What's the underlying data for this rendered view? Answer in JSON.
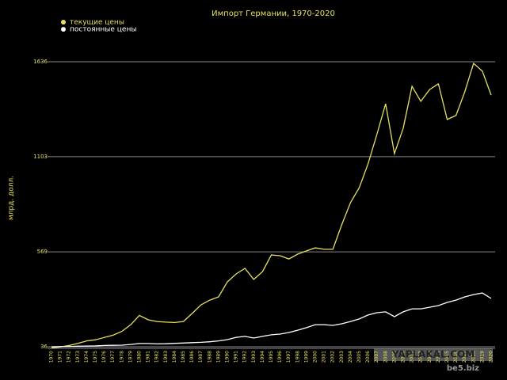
{
  "chart_data": {
    "type": "line",
    "title": "Импорт Германии, 1970-2020",
    "y_label": "млрд. долл.",
    "categories": [
      "1970",
      "1971",
      "1972",
      "1973",
      "1974",
      "1975",
      "1976",
      "1977",
      "1978",
      "1979",
      "1980",
      "1981",
      "1982",
      "1983",
      "1984",
      "1985",
      "1986",
      "1987",
      "1988",
      "1989",
      "1990",
      "1991",
      "1992",
      "1993",
      "1994",
      "1995",
      "1996",
      "1997",
      "1998",
      "1999",
      "2000",
      "2001",
      "2002",
      "2003",
      "2004",
      "2005",
      "2006",
      "2007",
      "2008",
      "2009",
      "2010",
      "2011",
      "2012",
      "2013",
      "2014",
      "2015",
      "2016",
      "2017",
      "2018",
      "2019",
      "2020"
    ],
    "series": [
      {
        "name": "текущие цены",
        "color": "#e8e060",
        "values": [
          30,
          35,
          43,
          55,
          69,
          75,
          88,
          101,
          122,
          159,
          212,
          187,
          178,
          174,
          172,
          178,
          223,
          271,
          298,
          316,
          400,
          445,
          476,
          414,
          458,
          551,
          547,
          529,
          556,
          574,
          591,
          583,
          583,
          720,
          845,
          929,
          1063,
          1227,
          1400,
          1120,
          1263,
          1498,
          1414,
          1480,
          1512,
          1312,
          1334,
          1467,
          1627,
          1583,
          1449
        ]
      },
      {
        "name": "постоянные цены",
        "color": "#ffffff",
        "values": [
          36,
          37,
          38,
          39,
          40,
          41,
          43,
          44,
          45,
          49,
          54,
          54,
          52,
          53,
          55,
          57,
          59,
          61,
          64,
          69,
          76,
          89,
          94,
          85,
          94,
          103,
          107,
          116,
          129,
          143,
          160,
          160,
          156,
          165,
          178,
          192,
          214,
          227,
          232,
          205,
          232,
          249,
          249,
          258,
          267,
          285,
          298,
          316,
          329,
          338,
          307
        ]
      }
    ],
    "ylim": [
      36,
      1700
    ],
    "yticks": [
      36,
      569,
      1103,
      1636
    ],
    "grid": true,
    "watermarks": [
      "YAPLAKAL.COM",
      "be5.biz"
    ]
  }
}
